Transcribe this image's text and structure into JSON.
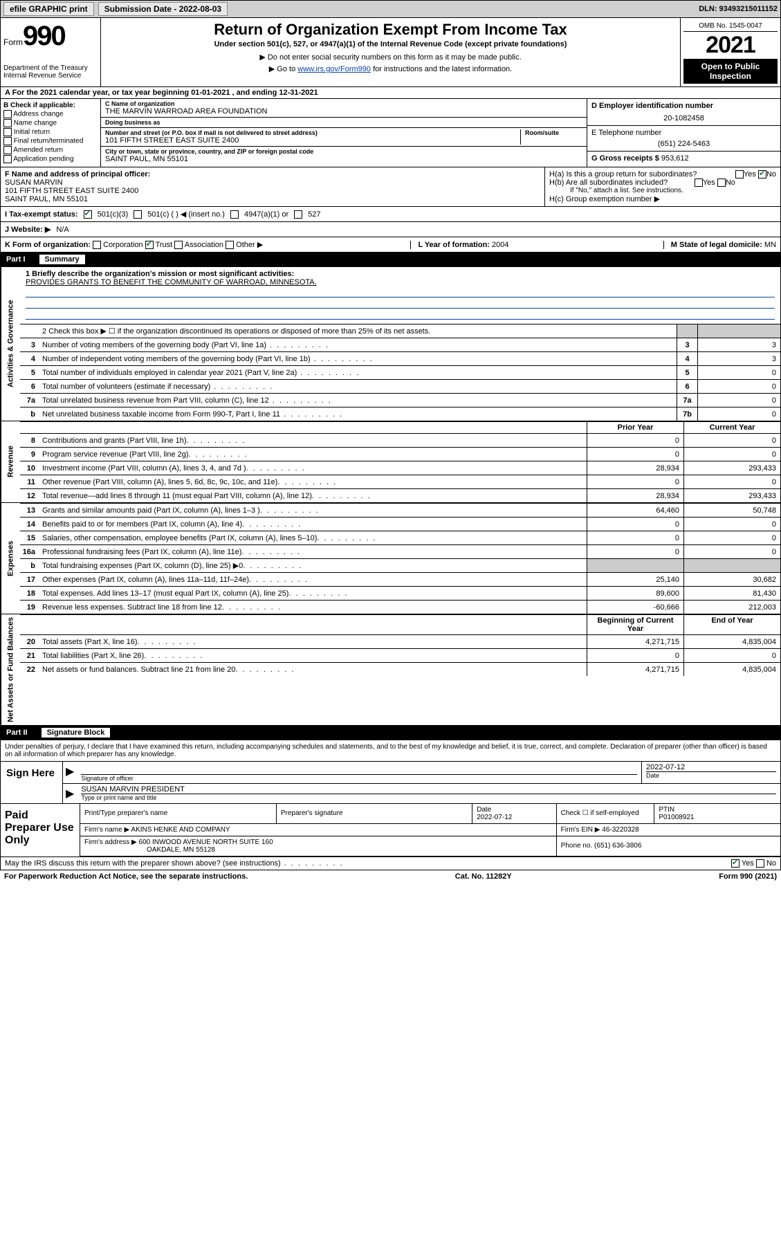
{
  "topbar": {
    "efile": "efile GRAPHIC print",
    "sub_label": "Submission Date - 2022-08-03",
    "dln": "DLN: 93493215011152"
  },
  "header": {
    "form_word": "Form",
    "form_num": "990",
    "title": "Return of Organization Exempt From Income Tax",
    "sub1": "Under section 501(c), 527, or 4947(a)(1) of the Internal Revenue Code (except private foundations)",
    "sub2": "▶ Do not enter social security numbers on this form as it may be made public.",
    "sub3_prefix": "▶ Go to ",
    "sub3_link": "www.irs.gov/Form990",
    "sub3_suffix": " for instructions and the latest information.",
    "dept": "Department of the Treasury\nInternal Revenue Service",
    "omb": "OMB No. 1545-0047",
    "year": "2021",
    "open": "Open to Public Inspection"
  },
  "row_a": "A For the 2021 calendar year, or tax year beginning 01-01-2021   , and ending 12-31-2021",
  "box_b": {
    "label": "B Check if applicable:",
    "items": [
      "Address change",
      "Name change",
      "Initial return",
      "Final return/terminated",
      "Amended return",
      "Application pending"
    ]
  },
  "box_c": {
    "name_lbl": "C Name of organization",
    "name": "THE MARVIN WARROAD AREA FOUNDATION",
    "dba_lbl": "Doing business as",
    "dba": "",
    "addr_lbl": "Number and street (or P.O. box if mail is not delivered to street address)",
    "room_lbl": "Room/suite",
    "addr": "101 FIFTH STREET EAST SUITE 2400",
    "city_lbl": "City or town, state or province, country, and ZIP or foreign postal code",
    "city": "SAINT PAUL, MN  55101"
  },
  "box_d": {
    "ein_lbl": "D Employer identification number",
    "ein": "20-1082458",
    "phone_lbl": "E Telephone number",
    "phone": "(651) 224-5463",
    "gross_lbl": "G Gross receipts $",
    "gross": "953,612"
  },
  "box_f": {
    "lbl": "F Name and address of principal officer:",
    "name": "SUSAN MARVIN",
    "addr1": "101 FIFTH STREET EAST SUITE 2400",
    "addr2": "SAINT PAUL, MN  55101"
  },
  "box_h": {
    "ha": "H(a)  Is this a group return for subordinates?",
    "hb": "H(b)  Are all subordinates included?",
    "hb_note": "If \"No,\" attach a list. See instructions.",
    "hc": "H(c)  Group exemption number ▶",
    "yes": "Yes",
    "no": "No"
  },
  "row_i": {
    "lbl": "I   Tax-exempt status:",
    "o1": "501(c)(3)",
    "o2": "501(c) (   ) ◀ (insert no.)",
    "o3": "4947(a)(1) or",
    "o4": "527"
  },
  "row_j": {
    "lbl": "J   Website: ▶",
    "val": "N/A"
  },
  "row_k": {
    "lbl": "K Form of organization:",
    "o1": "Corporation",
    "o2": "Trust",
    "o3": "Association",
    "o4": "Other ▶",
    "l_lbl": "L Year of formation:",
    "l_val": "2004",
    "m_lbl": "M State of legal domicile:",
    "m_val": "MN"
  },
  "part1": {
    "tag": "Part I",
    "title": "Summary"
  },
  "gov": {
    "vlabel": "Activities & Governance",
    "l1_lbl": "1   Briefly describe the organization's mission or most significant activities:",
    "l1_val": "PROVIDES GRANTS TO BENEFIT THE COMMUNITY OF WARROAD, MINNESOTA.",
    "l2": "2   Check this box ▶ ☐  if the organization discontinued its operations or disposed of more than 25% of its net assets.",
    "lines": [
      {
        "n": "3",
        "txt": "Number of voting members of the governing body (Part VI, line 1a)",
        "box": "3",
        "val": "3"
      },
      {
        "n": "4",
        "txt": "Number of independent voting members of the governing body (Part VI, line 1b)",
        "box": "4",
        "val": "3"
      },
      {
        "n": "5",
        "txt": "Total number of individuals employed in calendar year 2021 (Part V, line 2a)",
        "box": "5",
        "val": "0"
      },
      {
        "n": "6",
        "txt": "Total number of volunteers (estimate if necessary)",
        "box": "6",
        "val": "0"
      },
      {
        "n": "7a",
        "txt": "Total unrelated business revenue from Part VIII, column (C), line 12",
        "box": "7a",
        "val": "0"
      },
      {
        "n": "b",
        "txt": "Net unrelated business taxable income from Form 990-T, Part I, line 11",
        "box": "7b",
        "val": "0"
      }
    ]
  },
  "rev": {
    "vlabel": "Revenue",
    "h1": "Prior Year",
    "h2": "Current Year",
    "lines": [
      {
        "n": "8",
        "txt": "Contributions and grants (Part VIII, line 1h)",
        "c1": "0",
        "c2": "0"
      },
      {
        "n": "9",
        "txt": "Program service revenue (Part VIII, line 2g)",
        "c1": "0",
        "c2": "0"
      },
      {
        "n": "10",
        "txt": "Investment income (Part VIII, column (A), lines 3, 4, and 7d )",
        "c1": "28,934",
        "c2": "293,433"
      },
      {
        "n": "11",
        "txt": "Other revenue (Part VIII, column (A), lines 5, 6d, 8c, 9c, 10c, and 11e)",
        "c1": "0",
        "c2": "0"
      },
      {
        "n": "12",
        "txt": "Total revenue—add lines 8 through 11 (must equal Part VIII, column (A), line 12)",
        "c1": "28,934",
        "c2": "293,433"
      }
    ]
  },
  "exp": {
    "vlabel": "Expenses",
    "lines": [
      {
        "n": "13",
        "txt": "Grants and similar amounts paid (Part IX, column (A), lines 1–3 )",
        "c1": "64,460",
        "c2": "50,748"
      },
      {
        "n": "14",
        "txt": "Benefits paid to or for members (Part IX, column (A), line 4)",
        "c1": "0",
        "c2": "0"
      },
      {
        "n": "15",
        "txt": "Salaries, other compensation, employee benefits (Part IX, column (A), lines 5–10)",
        "c1": "0",
        "c2": "0"
      },
      {
        "n": "16a",
        "txt": "Professional fundraising fees (Part IX, column (A), line 11e)",
        "c1": "0",
        "c2": "0"
      },
      {
        "n": "b",
        "txt": "Total fundraising expenses (Part IX, column (D), line 25) ▶0",
        "c1": "",
        "c2": "",
        "shaded": true
      },
      {
        "n": "17",
        "txt": "Other expenses (Part IX, column (A), lines 11a–11d, 11f–24e)",
        "c1": "25,140",
        "c2": "30,682"
      },
      {
        "n": "18",
        "txt": "Total expenses. Add lines 13–17 (must equal Part IX, column (A), line 25)",
        "c1": "89,600",
        "c2": "81,430"
      },
      {
        "n": "19",
        "txt": "Revenue less expenses. Subtract line 18 from line 12",
        "c1": "-60,666",
        "c2": "212,003"
      }
    ]
  },
  "net": {
    "vlabel": "Net Assets or Fund Balances",
    "h1": "Beginning of Current Year",
    "h2": "End of Year",
    "lines": [
      {
        "n": "20",
        "txt": "Total assets (Part X, line 16)",
        "c1": "4,271,715",
        "c2": "4,835,004"
      },
      {
        "n": "21",
        "txt": "Total liabilities (Part X, line 26)",
        "c1": "0",
        "c2": "0"
      },
      {
        "n": "22",
        "txt": "Net assets or fund balances. Subtract line 21 from line 20",
        "c1": "4,271,715",
        "c2": "4,835,004"
      }
    ]
  },
  "part2": {
    "tag": "Part II",
    "title": "Signature Block"
  },
  "sig": {
    "decl": "Under penalties of perjury, I declare that I have examined this return, including accompanying schedules and statements, and to the best of my knowledge and belief, it is true, correct, and complete. Declaration of preparer (other than officer) is based on all information of which preparer has any knowledge.",
    "sign_here": "Sign Here",
    "sig_officer_lbl": "Signature of officer",
    "date_val": "2022-07-12",
    "date_lbl": "Date",
    "name_title": "SUSAN MARVIN PRESIDENT",
    "name_title_lbl": "Type or print name and title"
  },
  "prep": {
    "left": "Paid Preparer Use Only",
    "h_name": "Print/Type preparer's name",
    "h_sig": "Preparer's signature",
    "h_date": "Date",
    "date": "2022-07-12",
    "check_lbl": "Check ☐ if self-employed",
    "ptin_lbl": "PTIN",
    "ptin": "P01008921",
    "firm_name_lbl": "Firm's name    ▶",
    "firm_name": "AKINS HENKE AND COMPANY",
    "firm_ein_lbl": "Firm's EIN ▶",
    "firm_ein": "46-3220328",
    "firm_addr_lbl": "Firm's address ▶",
    "firm_addr1": "600 INWOOD AVENUE NORTH SUITE 160",
    "firm_addr2": "OAKDALE, MN  55128",
    "phone_lbl": "Phone no.",
    "phone": "(651) 636-3806"
  },
  "footer": {
    "discuss": "May the IRS discuss this return with the preparer shown above? (see instructions)",
    "yes": "Yes",
    "no": "No",
    "pra": "For Paperwork Reduction Act Notice, see the separate instructions.",
    "cat": "Cat. No. 11282Y",
    "form": "Form 990 (2021)"
  },
  "colors": {
    "link": "#0645ad",
    "check": "#0a7a3a",
    "shade": "#cccccc"
  }
}
